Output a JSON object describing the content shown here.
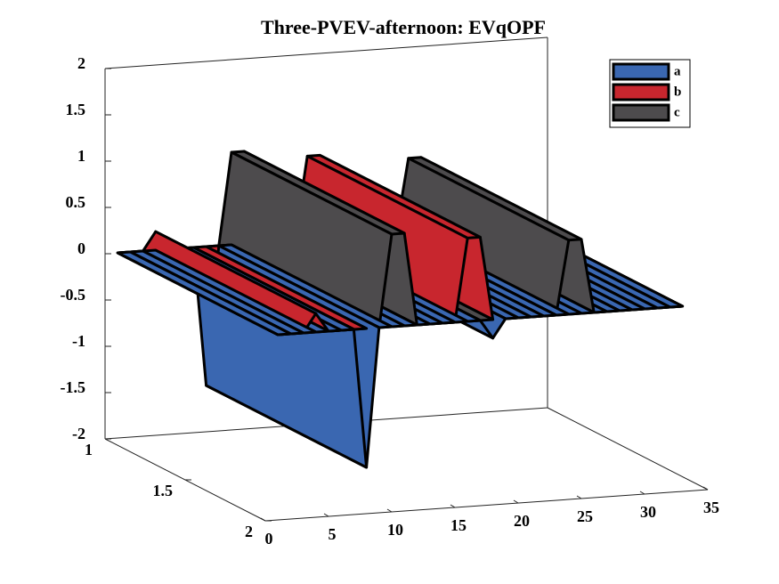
{
  "chart_data": {
    "type": "surface3d",
    "title": "Three-PVEV-afternoon: EVqOPF",
    "x": [
      1,
      2,
      3,
      4,
      5,
      6,
      7,
      8,
      9,
      10,
      11,
      12,
      13,
      14,
      15,
      16,
      17,
      18,
      19,
      20,
      21,
      22,
      23,
      24,
      25,
      26,
      27,
      28,
      29,
      30,
      31,
      32,
      33
    ],
    "series": [
      {
        "name": "a",
        "color": "#3a67b1",
        "values": [
          0,
          0,
          0,
          0,
          0,
          0,
          0,
          -1.5,
          0,
          0,
          0,
          0,
          0,
          0,
          0,
          0,
          0,
          -0.2,
          0,
          0,
          0,
          0,
          0,
          0,
          0,
          0,
          0,
          0,
          0,
          0,
          0,
          0,
          0
        ]
      },
      {
        "name": "b",
        "color": "#c8262e",
        "values": [
          0,
          0,
          0,
          0.2,
          0,
          0,
          0,
          0,
          0,
          0,
          0,
          0,
          0,
          0,
          0,
          0.9,
          0.9,
          0,
          0,
          0,
          0,
          0,
          0,
          0,
          0,
          0,
          0,
          0,
          0,
          0,
          0,
          0,
          0
        ]
      },
      {
        "name": "c",
        "color": "#4d4b4d",
        "values": [
          0,
          0,
          0,
          0,
          0,
          0,
          0,
          0,
          0,
          1,
          1,
          0,
          0,
          0,
          0,
          0,
          0,
          0,
          0,
          0,
          0,
          0,
          0,
          0.8,
          0.8,
          0,
          0,
          0,
          0,
          0,
          0,
          0,
          0
        ]
      }
    ],
    "xlim": [
      0,
      35
    ],
    "xticks": [
      0,
      5,
      10,
      15,
      20,
      25,
      30,
      35
    ],
    "ylim": [
      1,
      2
    ],
    "yticks": [
      1,
      1.5,
      2
    ],
    "zlim": [
      -2,
      2
    ],
    "zticks": [
      -2,
      -1.5,
      -1,
      -0.5,
      0,
      0.5,
      1,
      1.5,
      2
    ],
    "legend": "top-right",
    "grid": false
  }
}
